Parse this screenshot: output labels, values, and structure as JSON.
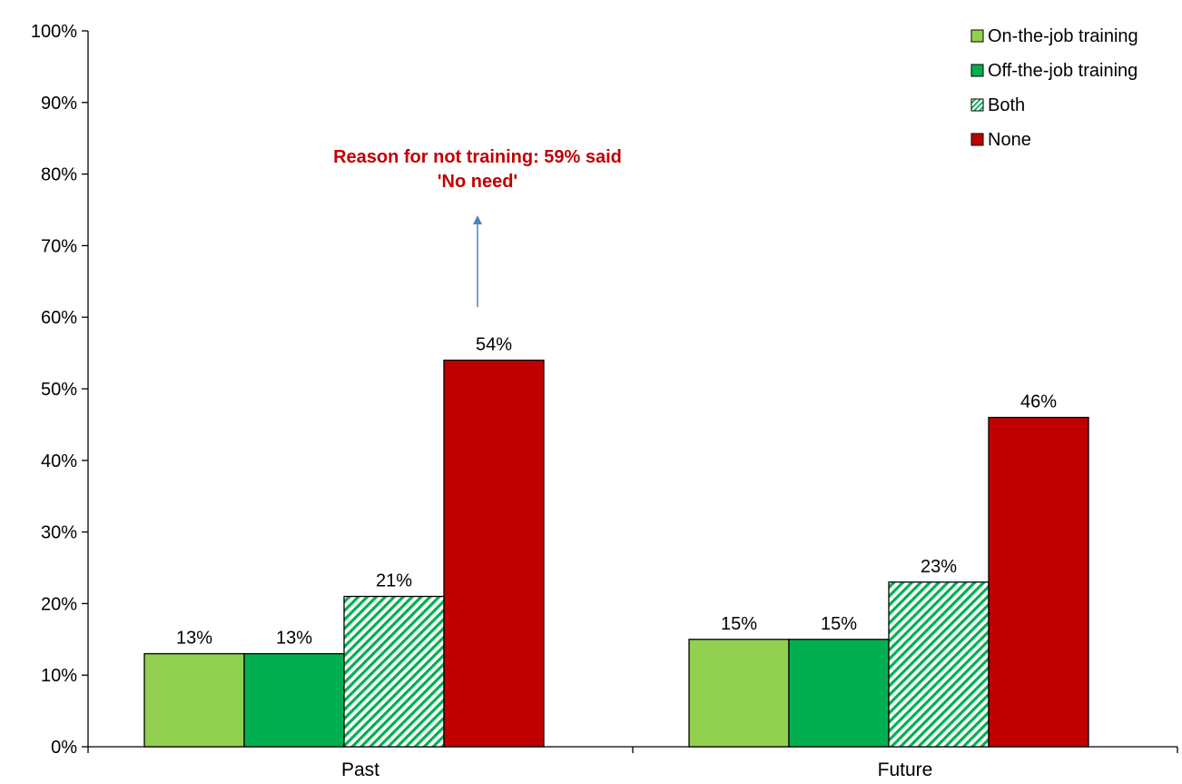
{
  "chart_data": {
    "type": "bar",
    "title": "",
    "categories": [
      "Past",
      "Future"
    ],
    "series": [
      {
        "name": "On-the-job training",
        "values": [
          13,
          15
        ],
        "color": "#92d050",
        "pattern": "solid"
      },
      {
        "name": "Off-the-job training",
        "values": [
          13,
          15
        ],
        "color": "#00b050",
        "pattern": "solid"
      },
      {
        "name": "Both",
        "values": [
          21,
          23
        ],
        "color": "#00b050",
        "pattern": "hatch"
      },
      {
        "name": "None",
        "values": [
          54,
          46
        ],
        "color": "#c00000",
        "pattern": "solid"
      }
    ],
    "data_labels": [
      [
        "13%",
        "15%"
      ],
      [
        "13%",
        "15%"
      ],
      [
        "21%",
        "23%"
      ],
      [
        "54%",
        "46%"
      ]
    ],
    "ylim": [
      0,
      100
    ],
    "yticks": [
      "0%",
      "10%",
      "20%",
      "30%",
      "40%",
      "50%",
      "60%",
      "70%",
      "80%",
      "90%",
      "100%"
    ],
    "xlabel": "",
    "ylabel": "",
    "grid": false,
    "legend_position": "top-right",
    "annotation": {
      "lines": [
        "Reason for not training: 59% said",
        "'No need'"
      ],
      "color": "#c00000",
      "arrow_color": "#4f81bd",
      "category": "Past",
      "series": "None"
    }
  }
}
